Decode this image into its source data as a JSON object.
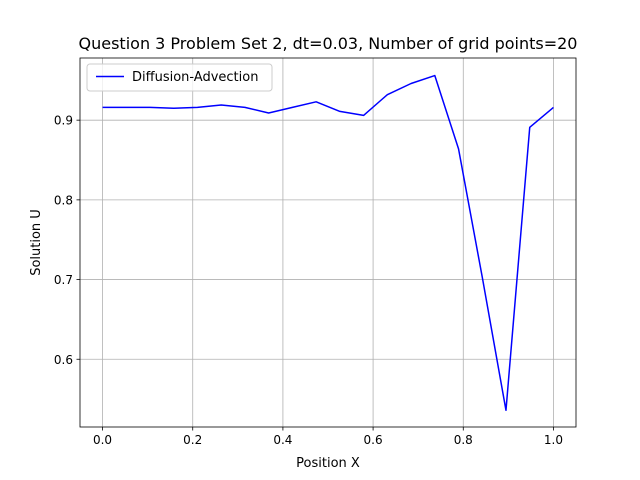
{
  "chart_data": {
    "type": "line",
    "title": "Question 3 Problem Set 2, dt=0.03, Number of grid points=20",
    "xlabel": "Position X",
    "ylabel": "Solution U",
    "xlim": [
      -0.05,
      1.05
    ],
    "ylim": [
      0.515,
      0.978
    ],
    "xticks": [
      0.0,
      0.2,
      0.4,
      0.6,
      0.8,
      1.0
    ],
    "xtick_labels": [
      "0.0",
      "0.2",
      "0.4",
      "0.6",
      "0.8",
      "1.0"
    ],
    "yticks": [
      0.6,
      0.7,
      0.8,
      0.9
    ],
    "ytick_labels": [
      "0.6",
      "0.7",
      "0.8",
      "0.9"
    ],
    "grid": true,
    "legend_position": "top-left",
    "series": [
      {
        "name": "Diffusion-Advection",
        "color": "#0000ff",
        "x": [
          0.0,
          0.0526,
          0.1053,
          0.1579,
          0.2105,
          0.2632,
          0.3158,
          0.3684,
          0.4211,
          0.4737,
          0.5263,
          0.5789,
          0.6316,
          0.6842,
          0.7368,
          0.7895,
          0.8421,
          0.8947,
          0.9474,
          1.0
        ],
        "y": [
          0.916,
          0.916,
          0.916,
          0.915,
          0.916,
          0.919,
          0.916,
          0.909,
          0.916,
          0.923,
          0.911,
          0.906,
          0.932,
          0.946,
          0.956,
          0.864,
          0.703,
          0.536,
          0.891,
          0.916
        ]
      }
    ]
  }
}
